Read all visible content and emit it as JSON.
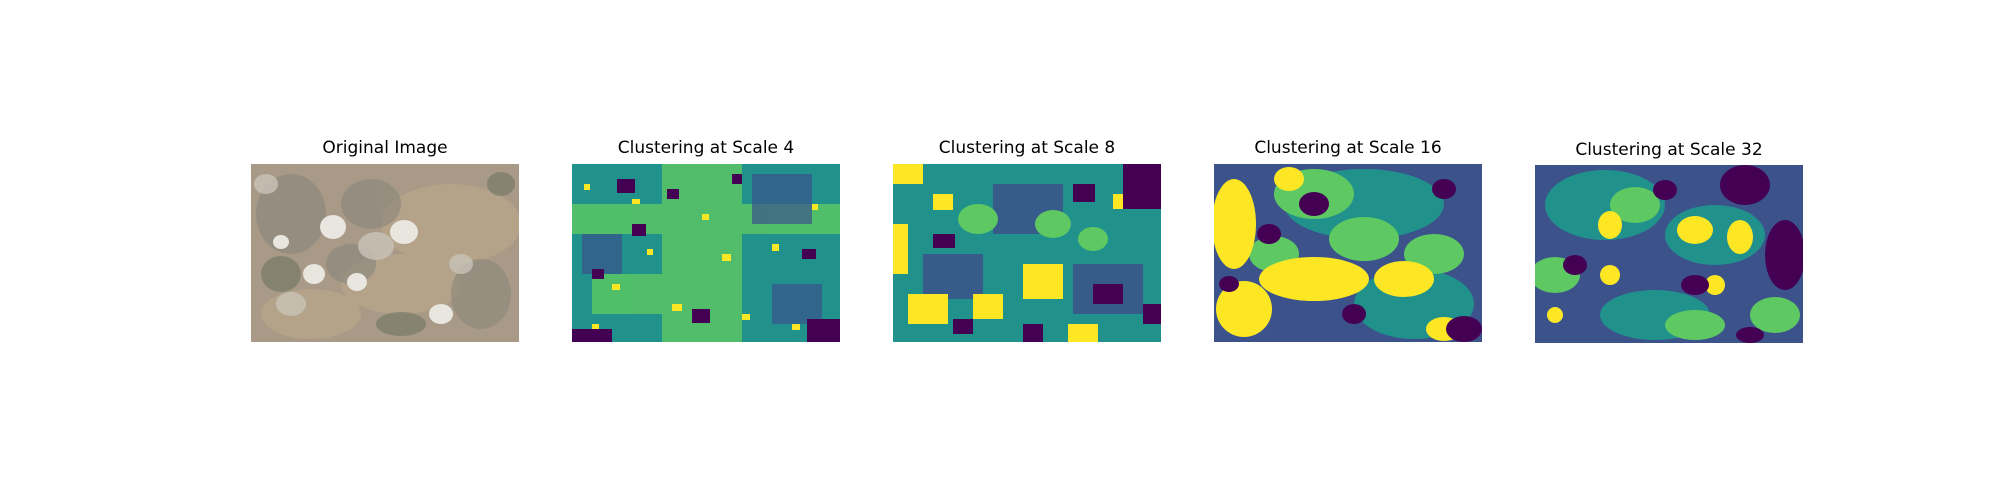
{
  "figure": {
    "panels": [
      {
        "title": "Original Image",
        "image": "aerial photo of dry shrubland with pale grey-white bushes and tan soil"
      },
      {
        "title": "Clustering at Scale 4",
        "image": "fine-grained cluster map, mostly teal-green with yellow speckles and dark purple patches"
      },
      {
        "title": "Clustering at Scale 8",
        "image": "cluster map with teal, yellow, dark purple and blue regions of medium granularity"
      },
      {
        "title": "Clustering at Scale 16",
        "image": "coarser cluster map with large yellow, green, blue and purple blobs"
      },
      {
        "title": "Clustering at Scale 32",
        "image": "coarsest cluster map with large smooth regions of blue, green, teal, yellow and purple"
      }
    ],
    "palette": {
      "purple": "#440154",
      "blue": "#3b528b",
      "teal": "#21918c",
      "green": "#5ec962",
      "yellow": "#fde725"
    }
  }
}
